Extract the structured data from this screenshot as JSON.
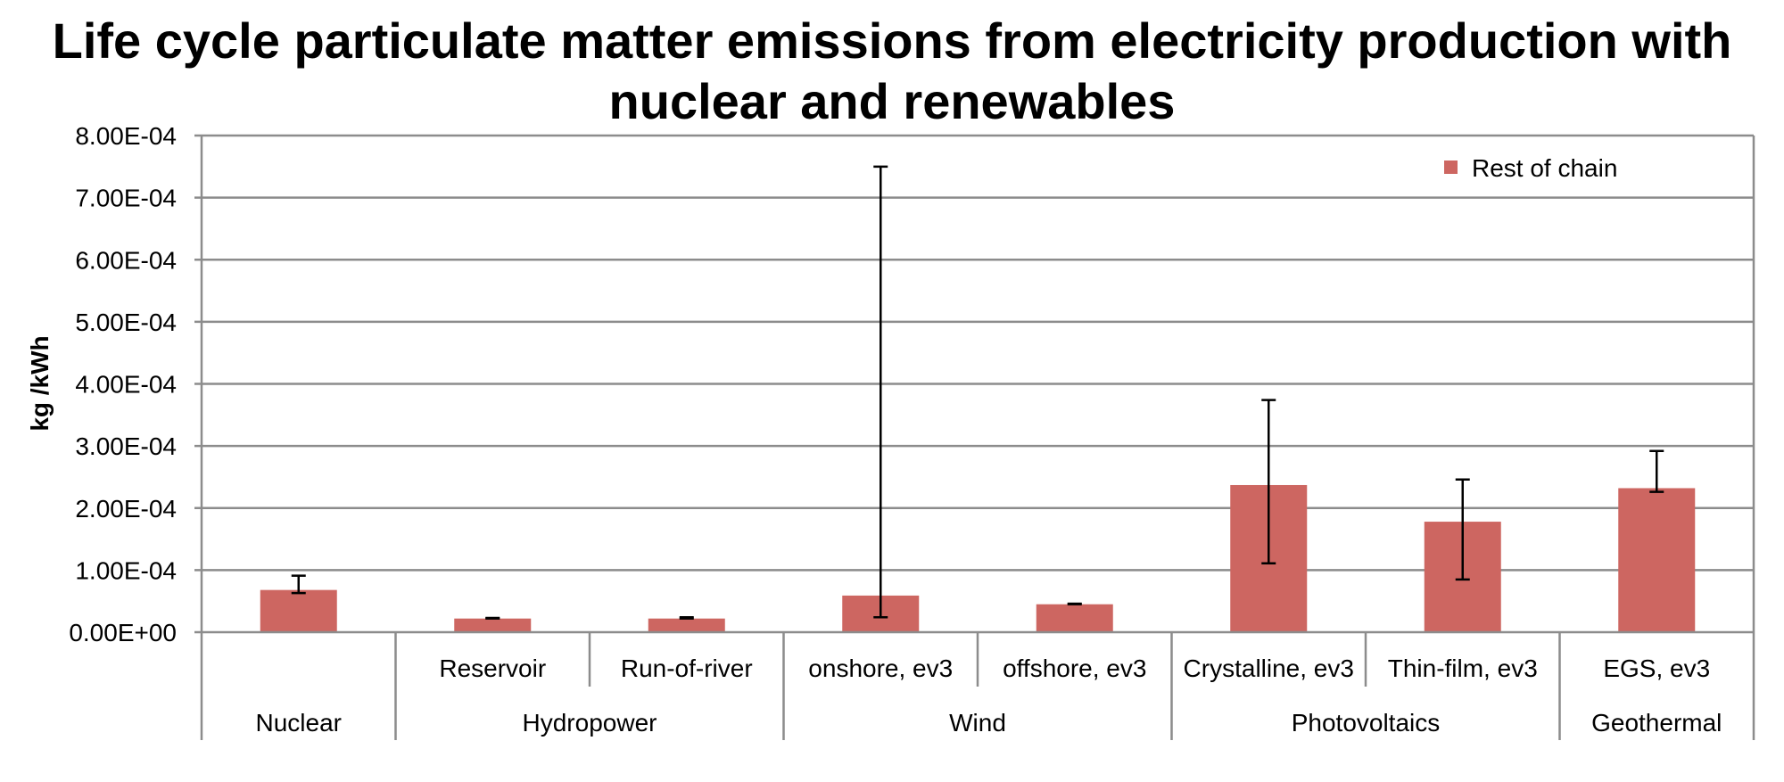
{
  "chart_data": {
    "type": "bar",
    "title": "Life cycle particulate matter emissions from electricity production with nuclear and renewables",
    "xlabel": "",
    "ylabel": "kg /kWh",
    "ylim": [
      0,
      0.0008
    ],
    "yticks": [
      {
        "value": 0,
        "label": "0.00E+00"
      },
      {
        "value": 0.0001,
        "label": "1.00E-04"
      },
      {
        "value": 0.0002,
        "label": "2.00E-04"
      },
      {
        "value": 0.0003,
        "label": "3.00E-04"
      },
      {
        "value": 0.0004,
        "label": "4.00E-04"
      },
      {
        "value": 0.0005,
        "label": "5.00E-04"
      },
      {
        "value": 0.0006,
        "label": "6.00E-04"
      },
      {
        "value": 0.0007,
        "label": "7.00E-04"
      },
      {
        "value": 0.0008,
        "label": "8.00E-04"
      }
    ],
    "grid": true,
    "legend_position": "top-right",
    "categories": [
      "",
      "Reservoir",
      "Run-of-river",
      "onshore, ev3",
      "offshore, ev3",
      "Crystalline, ev3",
      "Thin-film, ev3",
      "EGS, ev3"
    ],
    "groups": [
      {
        "label": "Nuclear",
        "span": 1
      },
      {
        "label": "Hydropower",
        "span": 2
      },
      {
        "label": "Wind",
        "span": 2
      },
      {
        "label": "Photovoltaics",
        "span": 2
      },
      {
        "label": "Geothermal",
        "span": 1
      }
    ],
    "series": [
      {
        "name": "Rest of chain",
        "color": "#cd6661",
        "values": [
          6.8e-05,
          2.2e-05,
          2.2e-05,
          5.9e-05,
          4.5e-05,
          0.000237,
          0.000178,
          0.000232
        ],
        "error_low": [
          6.3e-05,
          2.2e-05,
          2.2e-05,
          2.4e-05,
          4.5e-05,
          0.000111,
          8.5e-05,
          0.000226
        ],
        "error_high": [
          9.1e-05,
          2.3e-05,
          2.4e-05,
          0.00075,
          4.6e-05,
          0.000374,
          0.000246,
          0.000292
        ]
      }
    ]
  }
}
